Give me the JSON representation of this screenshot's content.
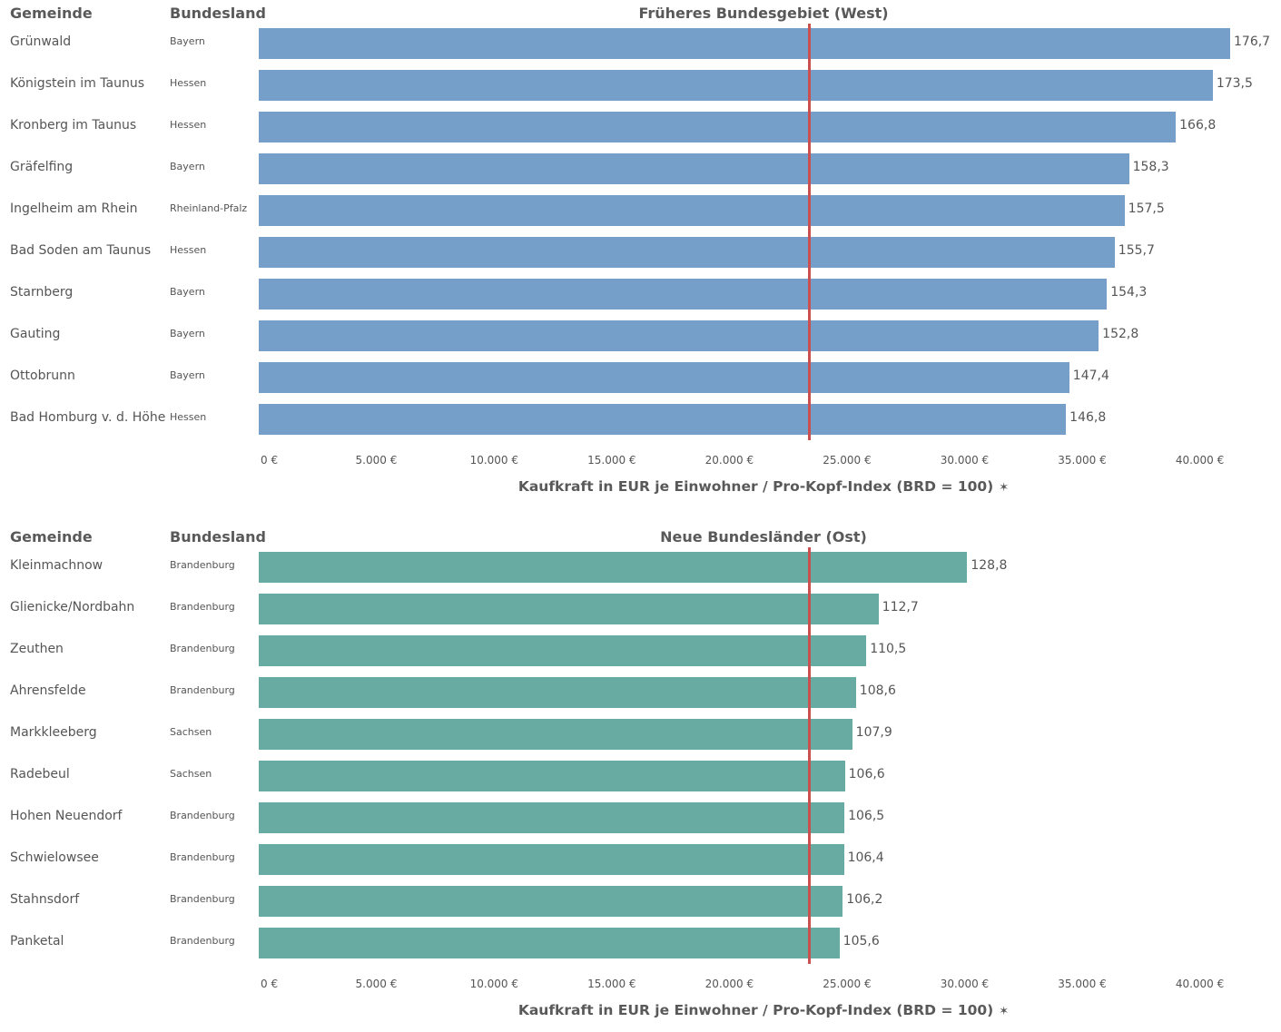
{
  "chart_data": [
    {
      "type": "bar",
      "orientation": "horizontal",
      "title": "Früheres Bundesgebiet (West)",
      "column_headers": {
        "gemeinde": "Gemeinde",
        "bundesland": "Bundesland"
      },
      "categories": [
        "Grünwald",
        "Königstein im Taunus",
        "Kronberg im Taunus",
        "Gräfelfing",
        "Ingelheim am Rhein",
        "Bad Soden am Taunus",
        "Starnberg",
        "Gauting",
        "Ottobrunn",
        "Bad Homburg v. d. Höhe"
      ],
      "bundesland": [
        "Bayern",
        "Hessen",
        "Hessen",
        "Bayern",
        "Rheinland-Pfalz",
        "Hessen",
        "Bayern",
        "Bayern",
        "Bayern",
        "Hessen"
      ],
      "values": [
        41300,
        40560,
        38990,
        37000,
        36810,
        36390,
        36060,
        35710,
        34460,
        34320
      ],
      "labels": [
        "176,7",
        "173,5",
        "166,8",
        "158,3",
        "157,5",
        "155,7",
        "154,3",
        "152,8",
        "147,4",
        "146,8"
      ],
      "reference_line": 23380,
      "xlim": [
        0,
        41300
      ],
      "ticks": [
        0,
        5000,
        10000,
        15000,
        20000,
        25000,
        30000,
        35000,
        40000
      ],
      "tick_labels": [
        "0 €",
        "5.000 €",
        "10.000 €",
        "15.000 €",
        "20.000 €",
        "25.000 €",
        "30.000 €",
        "35.000 €",
        "40.000 €"
      ],
      "xlabel": "Kaufkraft in EUR je Einwohner / Pro-Kopf-Index (BRD = 100)",
      "color": "#759fc8",
      "reference_color": "#c9504f",
      "icon": "pin-icon"
    },
    {
      "type": "bar",
      "orientation": "horizontal",
      "title": "Neue Bundesländer (Ost)",
      "column_headers": {
        "gemeinde": "Gemeinde",
        "bundesland": "Bundesland"
      },
      "categories": [
        "Kleinmachnow",
        "Glienicke/Nordbahn",
        "Zeuthen",
        "Ahrensfelde",
        "Markkleeberg",
        "Radebeul",
        "Hohen Neuendorf",
        "Schwielowsee",
        "Stahnsdorf",
        "Panketal"
      ],
      "bundesland": [
        "Brandenburg",
        "Brandenburg",
        "Brandenburg",
        "Brandenburg",
        "Sachsen",
        "Sachsen",
        "Brandenburg",
        "Brandenburg",
        "Brandenburg",
        "Brandenburg"
      ],
      "values": [
        30120,
        26350,
        25830,
        25390,
        25230,
        24920,
        24900,
        24880,
        24830,
        24690
      ],
      "labels": [
        "128,8",
        "112,7",
        "110,5",
        "108,6",
        "107,9",
        "106,6",
        "106,5",
        "106,4",
        "106,2",
        "105,6"
      ],
      "reference_line": 23380,
      "xlim": [
        0,
        41300
      ],
      "ticks": [
        0,
        5000,
        10000,
        15000,
        20000,
        25000,
        30000,
        35000,
        40000
      ],
      "tick_labels": [
        "0 €",
        "5.000 €",
        "10.000 €",
        "15.000 €",
        "20.000 €",
        "25.000 €",
        "30.000 €",
        "35.000 €",
        "40.000 €"
      ],
      "xlabel": "Kaufkraft in EUR je Einwohner / Pro-Kopf-Index (BRD = 100)",
      "color": "#67aba3",
      "reference_color": "#c9504f",
      "icon": "pin-icon"
    }
  ]
}
